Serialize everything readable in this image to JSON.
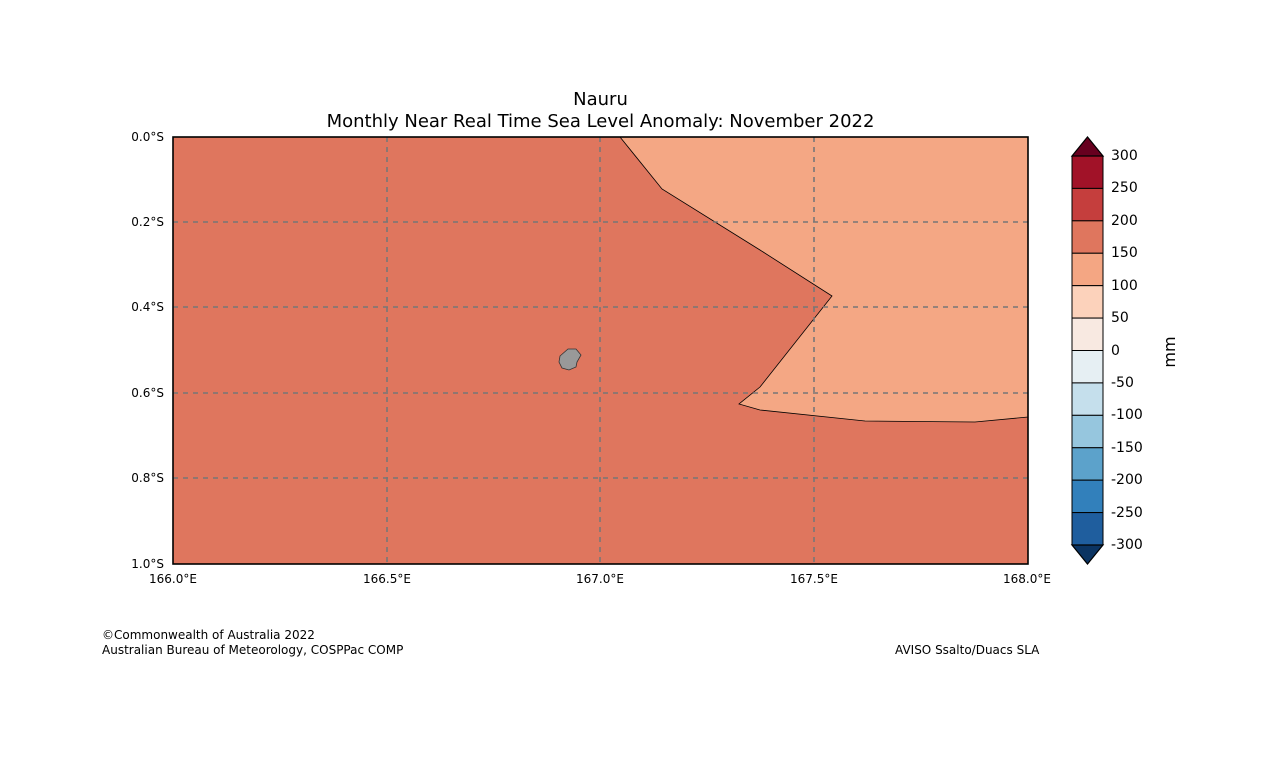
{
  "title": "Nauru",
  "subtitle": "Monthly Near Real Time Sea Level Anomaly: November 2022",
  "map": {
    "lat_labels": [
      "0.0°S",
      "0.2°S",
      "0.4°S",
      "0.6°S",
      "0.8°S",
      "1.0°S"
    ],
    "lon_labels": [
      "166.0°E",
      "166.5°E",
      "167.0°E",
      "167.5°E",
      "168.0°E"
    ],
    "region_fill_colors": {
      "main": "#df765e",
      "east": "#f4a784",
      "land": "#999999"
    }
  },
  "colorbar": {
    "unit": "mm",
    "ticks": [
      "300",
      "250",
      "200",
      "150",
      "100",
      "50",
      "0",
      "-50",
      "-100",
      "-150",
      "-200",
      "-250",
      "-300"
    ],
    "colors": [
      "#a11228",
      "#c53e3d",
      "#df765e",
      "#f4a683",
      "#fcd2bb",
      "#f8e9e1",
      "#e6eff3",
      "#c5dfec",
      "#96c6de",
      "#5ca2cb",
      "#3280bb",
      "#1f5e9e"
    ],
    "extend_high": "#67001f",
    "extend_low": "#0b3462"
  },
  "footer": {
    "copyright": "©Commonwealth of Australia 2022",
    "org": "Australian Bureau of Meteorology, COSPPac COMP",
    "source": "AVISO Ssalto/Duacs SLA"
  }
}
